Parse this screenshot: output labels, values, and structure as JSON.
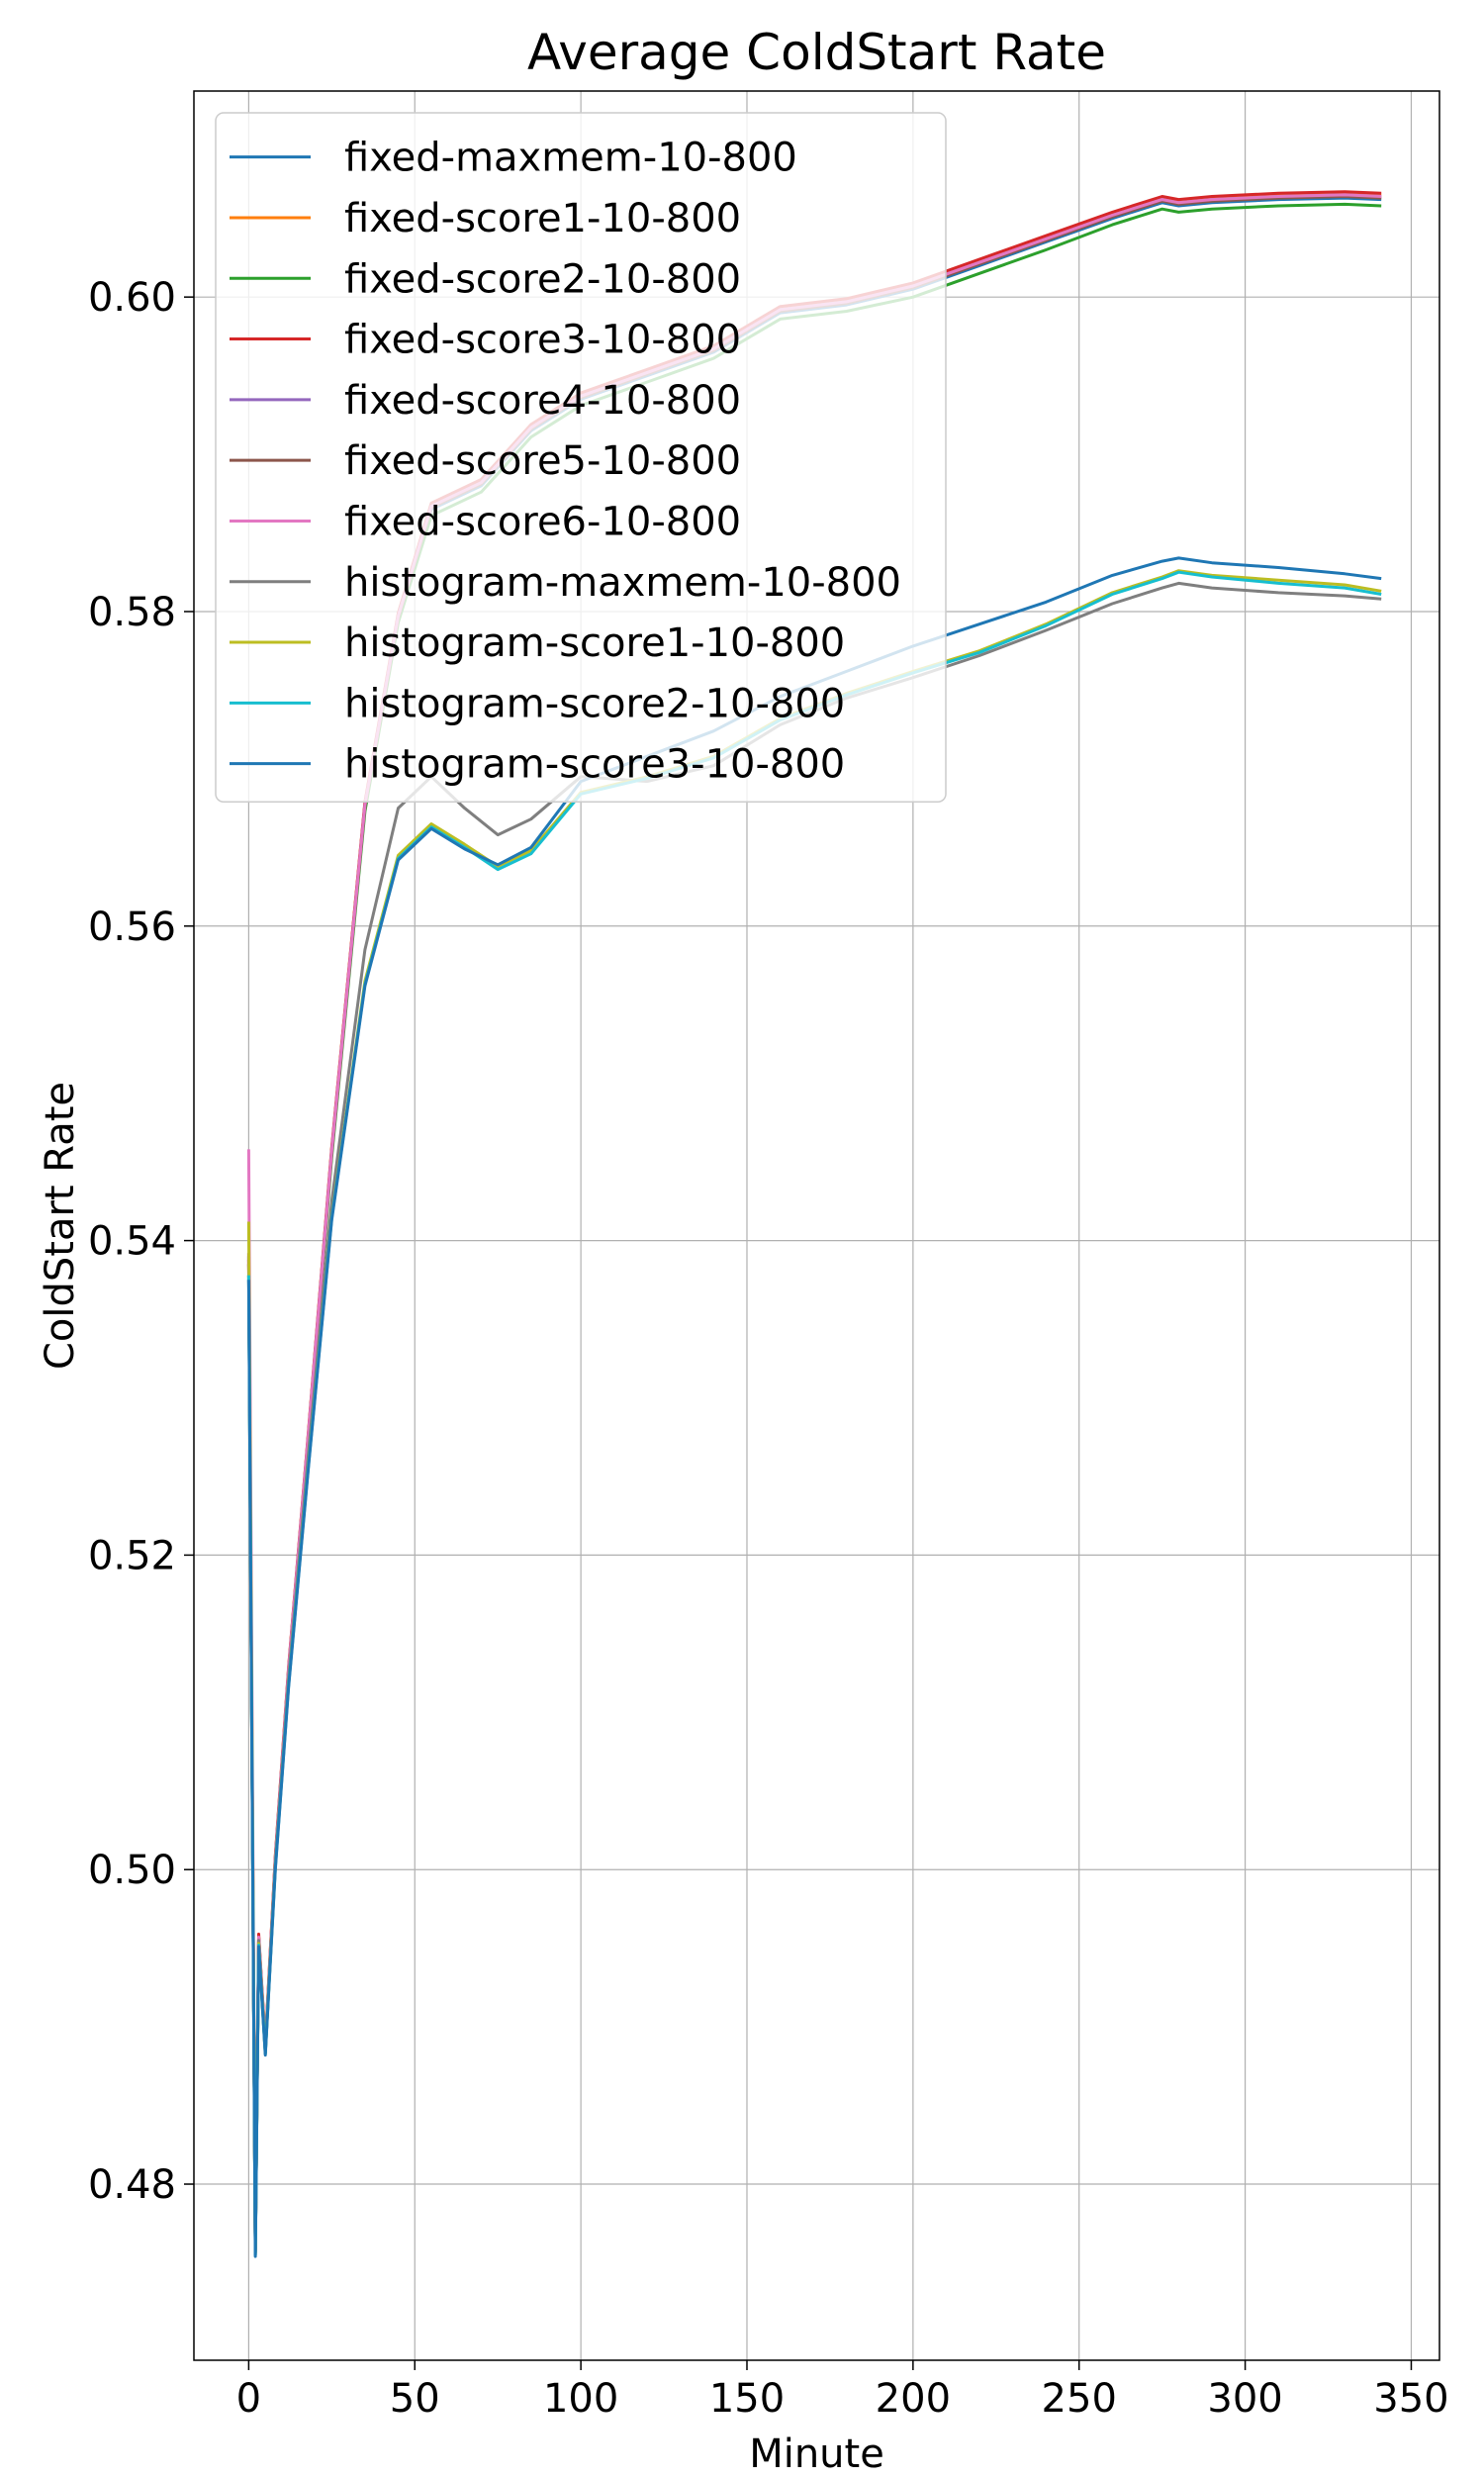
{
  "chart_data": {
    "type": "line",
    "title": "Average ColdStart Rate",
    "xlabel": "Minute",
    "ylabel": "ColdStart Rate",
    "xlim": [
      -16.5,
      358.5
    ],
    "ylim": [
      0.4688,
      0.6131
    ],
    "xticks": [
      0,
      50,
      100,
      150,
      200,
      250,
      300,
      350
    ],
    "yticks": [
      0.48,
      0.5,
      0.52,
      0.54,
      0.56,
      0.58,
      0.6
    ],
    "xtick_labels": [
      "0",
      "50",
      "100",
      "150",
      "200",
      "250",
      "300",
      "350"
    ],
    "ytick_labels": [
      "0.48",
      "0.50",
      "0.52",
      "0.54",
      "0.56",
      "0.58",
      "0.60"
    ],
    "grid": true,
    "legend_position": "upper-left",
    "series": [
      {
        "name": "fixed-maxmem-10-800",
        "color": "#1f77b4",
        "x": [
          0,
          2,
          3,
          5,
          8,
          12,
          18,
          25,
          35,
          45,
          55,
          70,
          85,
          100,
          120,
          140,
          160,
          180,
          200,
          220,
          240,
          260,
          275,
          280,
          290,
          310,
          330,
          341
        ],
        "y": [
          0.5375,
          0.4755,
          0.4955,
          0.4885,
          0.5005,
          0.5125,
          0.5275,
          0.5455,
          0.5675,
          0.5795,
          0.5865,
          0.588,
          0.5915,
          0.5935,
          0.595,
          0.5965,
          0.599,
          0.5995,
          0.6005,
          0.602,
          0.6035,
          0.605,
          0.606,
          0.6058,
          0.606,
          0.6062,
          0.6063,
          0.6062
        ]
      },
      {
        "name": "fixed-score1-10-800",
        "color": "#ff7f0e",
        "x": [
          0,
          2,
          3,
          5,
          8,
          12,
          18,
          25,
          35,
          45,
          55,
          70,
          85,
          100,
          120,
          140,
          160,
          180,
          200,
          220,
          240,
          260,
          275,
          280,
          290,
          310,
          330,
          341
        ],
        "y": [
          0.5385,
          0.4758,
          0.4958,
          0.4888,
          0.5008,
          0.5128,
          0.5278,
          0.5458,
          0.5678,
          0.5798,
          0.5868,
          0.5883,
          0.5918,
          0.5938,
          0.5953,
          0.5968,
          0.5993,
          0.5998,
          0.6008,
          0.6023,
          0.6038,
          0.6053,
          0.6063,
          0.6061,
          0.6063,
          0.6065,
          0.6066,
          0.6065
        ]
      },
      {
        "name": "fixed-score2-10-800",
        "color": "#2ca02c",
        "x": [
          0,
          2,
          3,
          5,
          8,
          12,
          18,
          25,
          35,
          45,
          55,
          70,
          85,
          100,
          120,
          140,
          160,
          180,
          200,
          220,
          240,
          260,
          275,
          280,
          290,
          310,
          330,
          341
        ],
        "y": [
          0.5378,
          0.4756,
          0.4953,
          0.4883,
          0.5003,
          0.5123,
          0.5273,
          0.5453,
          0.5673,
          0.5793,
          0.5861,
          0.5876,
          0.5911,
          0.5931,
          0.5946,
          0.5961,
          0.5986,
          0.5991,
          0.6,
          0.6015,
          0.603,
          0.6046,
          0.6056,
          0.6054,
          0.6056,
          0.6058,
          0.6059,
          0.6058
        ]
      },
      {
        "name": "fixed-score3-10-800",
        "color": "#d62728",
        "x": [
          0,
          2,
          3,
          5,
          8,
          12,
          18,
          25,
          35,
          45,
          55,
          70,
          85,
          100,
          120,
          140,
          160,
          180,
          200,
          220,
          240,
          260,
          275,
          280,
          290,
          310,
          330,
          341
        ],
        "y": [
          0.5388,
          0.4759,
          0.4959,
          0.4889,
          0.5009,
          0.5129,
          0.5279,
          0.5459,
          0.5679,
          0.5799,
          0.5869,
          0.5884,
          0.5919,
          0.5939,
          0.5954,
          0.5969,
          0.5994,
          0.5999,
          0.6009,
          0.6024,
          0.6039,
          0.6054,
          0.6064,
          0.6062,
          0.6064,
          0.6066,
          0.6067,
          0.6066
        ]
      },
      {
        "name": "fixed-score4-10-800",
        "color": "#9467bd",
        "x": [
          0,
          2,
          3,
          5,
          8,
          12,
          18,
          25,
          35,
          45,
          55,
          70,
          85,
          100,
          120,
          140,
          160,
          180,
          200,
          220,
          240,
          260,
          275,
          280,
          290,
          310,
          330,
          341
        ],
        "y": [
          0.539,
          0.4757,
          0.4957,
          0.4887,
          0.5007,
          0.5127,
          0.5277,
          0.5457,
          0.5677,
          0.5797,
          0.5867,
          0.5882,
          0.5917,
          0.5937,
          0.5952,
          0.5967,
          0.5992,
          0.5997,
          0.6007,
          0.6022,
          0.6037,
          0.6052,
          0.6062,
          0.606,
          0.6062,
          0.6064,
          0.6065,
          0.6064
        ]
      },
      {
        "name": "fixed-score5-10-800",
        "color": "#8c564b",
        "x": [
          0,
          2,
          3,
          5,
          8,
          12,
          18,
          25,
          35,
          45,
          55,
          70,
          85,
          100,
          120,
          140,
          160,
          180,
          200,
          220,
          240,
          260,
          275,
          280,
          290,
          310,
          330,
          341
        ],
        "y": [
          0.5392,
          0.4757,
          0.4956,
          0.4886,
          0.5006,
          0.5126,
          0.5276,
          0.5456,
          0.5676,
          0.5796,
          0.5866,
          0.5881,
          0.5916,
          0.5936,
          0.5951,
          0.5966,
          0.5991,
          0.5996,
          0.6006,
          0.6021,
          0.6036,
          0.6051,
          0.6061,
          0.6059,
          0.6061,
          0.6063,
          0.6064,
          0.6063
        ]
      },
      {
        "name": "fixed-score6-10-800",
        "color": "#e377c2",
        "x": [
          0,
          2,
          3,
          5,
          8,
          12,
          18,
          25,
          35,
          45,
          55,
          70,
          85,
          100,
          120,
          140,
          160,
          180,
          200,
          220,
          240,
          260,
          275,
          280,
          290,
          310,
          330,
          341
        ],
        "y": [
          0.5458,
          0.4758,
          0.4957,
          0.4887,
          0.5007,
          0.5127,
          0.5277,
          0.5457,
          0.5677,
          0.5797,
          0.5867,
          0.5882,
          0.5917,
          0.5937,
          0.5952,
          0.5967,
          0.5992,
          0.5997,
          0.6007,
          0.6022,
          0.6037,
          0.6052,
          0.6062,
          0.606,
          0.6062,
          0.6064,
          0.6065,
          0.6064
        ]
      },
      {
        "name": "histogram-maxmem-10-800",
        "color": "#7f7f7f",
        "x": [
          0,
          2,
          3,
          5,
          8,
          12,
          18,
          25,
          35,
          45,
          55,
          65,
          75,
          85,
          100,
          120,
          140,
          160,
          180,
          200,
          220,
          240,
          260,
          275,
          280,
          290,
          310,
          330,
          341
        ],
        "y": [
          0.5385,
          0.4758,
          0.4955,
          0.4886,
          0.5005,
          0.5122,
          0.5265,
          0.5425,
          0.5585,
          0.5675,
          0.5695,
          0.5675,
          0.5658,
          0.5668,
          0.5695,
          0.5692,
          0.5702,
          0.5728,
          0.5745,
          0.5758,
          0.5772,
          0.5788,
          0.5805,
          0.5815,
          0.5818,
          0.5815,
          0.5812,
          0.581,
          0.5808
        ]
      },
      {
        "name": "histogram-score1-10-800",
        "color": "#bcbd22",
        "x": [
          0,
          2,
          3,
          5,
          8,
          12,
          18,
          25,
          35,
          45,
          55,
          65,
          75,
          85,
          100,
          120,
          140,
          160,
          180,
          200,
          220,
          240,
          260,
          275,
          280,
          290,
          310,
          330,
          341
        ],
        "y": [
          0.5412,
          0.4756,
          0.4953,
          0.4884,
          0.5002,
          0.5118,
          0.5258,
          0.5415,
          0.5565,
          0.5645,
          0.5665,
          0.5652,
          0.5638,
          0.5648,
          0.5685,
          0.5695,
          0.5708,
          0.5732,
          0.5748,
          0.5762,
          0.5775,
          0.5792,
          0.5812,
          0.5822,
          0.5826,
          0.5823,
          0.582,
          0.5817,
          0.5813
        ]
      },
      {
        "name": "histogram-score2-10-800",
        "color": "#17becf",
        "x": [
          0,
          2,
          3,
          5,
          8,
          12,
          18,
          25,
          35,
          45,
          55,
          65,
          75,
          85,
          100,
          120,
          140,
          160,
          180,
          200,
          220,
          240,
          260,
          275,
          280,
          290,
          310,
          330,
          341
        ],
        "y": [
          0.5378,
          0.4755,
          0.4952,
          0.4883,
          0.5001,
          0.5117,
          0.5257,
          0.5414,
          0.5563,
          0.5643,
          0.5663,
          0.565,
          0.5636,
          0.5646,
          0.5684,
          0.5694,
          0.5707,
          0.5731,
          0.5747,
          0.5761,
          0.5774,
          0.5791,
          0.5811,
          0.5821,
          0.5825,
          0.5822,
          0.5818,
          0.5815,
          0.5811
        ]
      },
      {
        "name": "histogram-score3-10-800",
        "color": "#1f77b4",
        "x": [
          0,
          2,
          3,
          5,
          8,
          12,
          18,
          25,
          35,
          45,
          55,
          65,
          75,
          85,
          100,
          120,
          140,
          160,
          180,
          200,
          220,
          240,
          260,
          275,
          280,
          290,
          310,
          330,
          341
        ],
        "y": [
          0.5375,
          0.4754,
          0.4951,
          0.4882,
          0.5,
          0.5116,
          0.5256,
          0.5413,
          0.5562,
          0.5642,
          0.5662,
          0.5649,
          0.5639,
          0.565,
          0.5692,
          0.5708,
          0.5724,
          0.5746,
          0.5762,
          0.5778,
          0.5792,
          0.5806,
          0.5823,
          0.5832,
          0.5834,
          0.5831,
          0.5828,
          0.5824,
          0.5821
        ]
      }
    ]
  }
}
